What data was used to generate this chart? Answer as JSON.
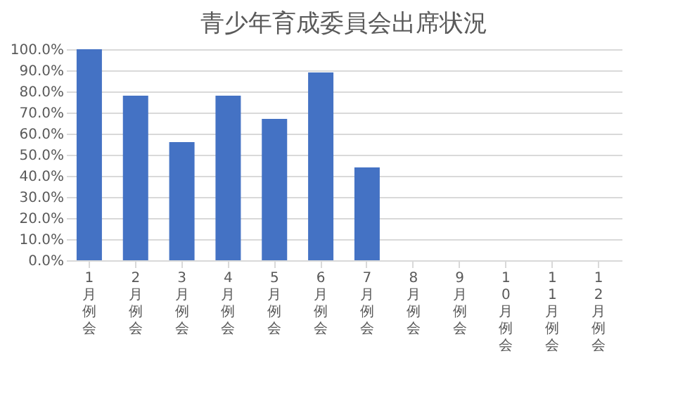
{
  "chart_data": {
    "type": "bar",
    "title": "青少年育成委員会出席状況",
    "categories": [
      "1月例会",
      "2月例会",
      "3月例会",
      "4月例会",
      "5月例会",
      "6月例会",
      "7月例会",
      "8月例会",
      "9月例会",
      "10月例会",
      "11月例会",
      "12月例会"
    ],
    "values": [
      100,
      78,
      56,
      78,
      67,
      89,
      44,
      null,
      null,
      null,
      null,
      null
    ],
    "color": "#4472c4",
    "ylim": [
      0,
      100
    ],
    "yticks": [
      {
        "value": 0,
        "label": "0.0%"
      },
      {
        "value": 10,
        "label": "10.0%"
      },
      {
        "value": 20,
        "label": "20.0%"
      },
      {
        "value": 30,
        "label": "30.0%"
      },
      {
        "value": 40,
        "label": "40.0%"
      },
      {
        "value": 50,
        "label": "50.0%"
      },
      {
        "value": 60,
        "label": "60.0%"
      },
      {
        "value": 70,
        "label": "70.0%"
      },
      {
        "value": 80,
        "label": "80.0%"
      },
      {
        "value": 90,
        "label": "90.0%"
      },
      {
        "value": 100,
        "label": "100.0%"
      }
    ],
    "grid": "y"
  }
}
